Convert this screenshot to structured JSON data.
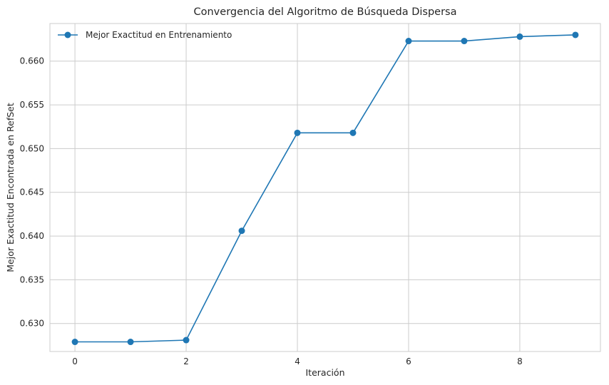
{
  "chart_data": {
    "type": "line",
    "title": "Convergencia del Algoritmo de Búsqueda Dispersa",
    "xlabel": "Iteración",
    "ylabel": "Mejor Exactitud Encontrada en RefSet",
    "xlim": [
      -0.45,
      9.45
    ],
    "ylim": [
      0.6268,
      0.6643
    ],
    "x_ticks": [
      0,
      2,
      4,
      6,
      8
    ],
    "x_tick_labels": [
      "0",
      "2",
      "4",
      "6",
      "8"
    ],
    "y_ticks": [
      0.63,
      0.635,
      0.64,
      0.645,
      0.65,
      0.655,
      0.66
    ],
    "y_tick_labels": [
      "0.630",
      "0.635",
      "0.640",
      "0.645",
      "0.650",
      "0.655",
      "0.660"
    ],
    "grid": true,
    "legend_position": "top-left",
    "series": [
      {
        "name": "Mejor Exactitud en Entrenamiento",
        "color": "#1f77b4",
        "marker": "circle",
        "x": [
          0,
          1,
          2,
          3,
          4,
          5,
          6,
          7,
          8,
          9
        ],
        "y": [
          0.6279,
          0.6279,
          0.6281,
          0.6406,
          0.6518,
          0.6518,
          0.6623,
          0.6623,
          0.6628,
          0.663
        ]
      }
    ]
  }
}
